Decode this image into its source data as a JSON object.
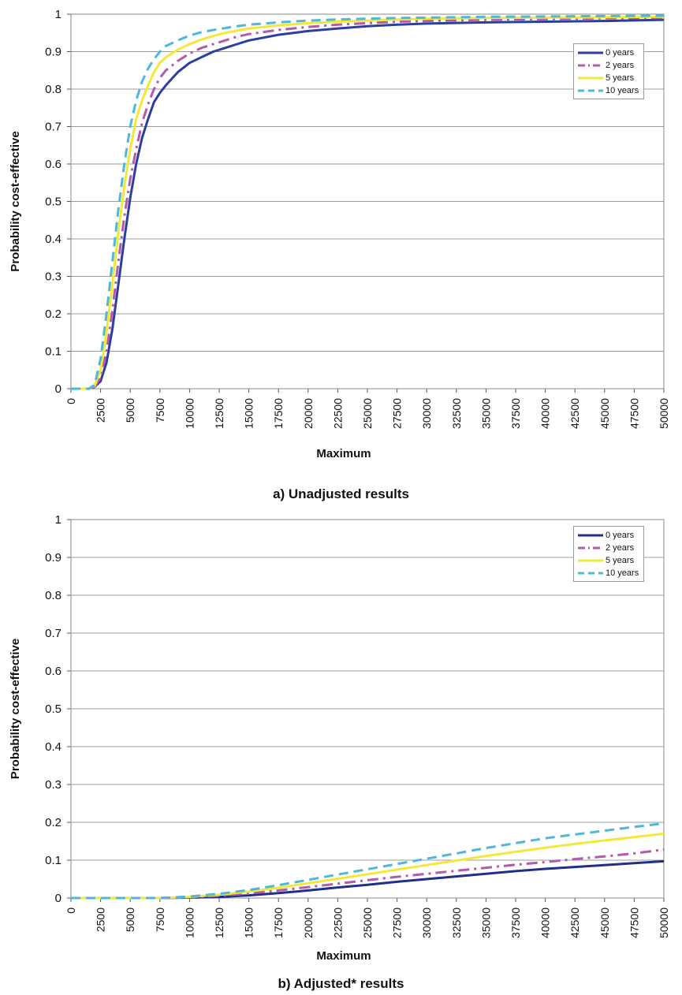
{
  "chart_data": [
    {
      "type": "line",
      "title": "a) Unadjusted results",
      "xlabel": "Maximum",
      "ylabel": "Probability cost-effective",
      "xlim": [
        0,
        50000
      ],
      "ylim": [
        0,
        1
      ],
      "x_ticks": [
        "0",
        "2500",
        "5000",
        "7500",
        "10000",
        "12500",
        "15000",
        "17500",
        "20000",
        "22500",
        "25000",
        "27500",
        "30000",
        "32500",
        "35000",
        "37500",
        "40000",
        "42500",
        "45000",
        "47500",
        "50000"
      ],
      "y_ticks": [
        "0",
        "0.1",
        "0.2",
        "0.3",
        "0.4",
        "0.5",
        "0.6",
        "0.7",
        "0.8",
        "0.9",
        "1"
      ],
      "grid": true,
      "legend": "top-right",
      "x": [
        0,
        1000,
        1500,
        2000,
        2500,
        3000,
        3500,
        4000,
        4500,
        5000,
        5500,
        6000,
        6500,
        7000,
        7500,
        8000,
        9000,
        10000,
        11000,
        12000,
        13000,
        14000,
        15000,
        17500,
        20000,
        22500,
        25000,
        27500,
        30000,
        35000,
        40000,
        45000,
        50000
      ],
      "series": [
        {
          "name": "0 years",
          "color": "#2b3f9e",
          "dash": "solid",
          "values": [
            0,
            0,
            0,
            0.005,
            0.02,
            0.07,
            0.16,
            0.28,
            0.4,
            0.51,
            0.6,
            0.67,
            0.72,
            0.765,
            0.79,
            0.81,
            0.845,
            0.87,
            0.885,
            0.9,
            0.91,
            0.92,
            0.93,
            0.945,
            0.955,
            0.962,
            0.968,
            0.972,
            0.975,
            0.978,
            0.98,
            0.982,
            0.985
          ]
        },
        {
          "name": "2 years",
          "color": "#b25aac",
          "dash": "dashdot",
          "values": [
            0,
            0,
            0,
            0.005,
            0.03,
            0.1,
            0.21,
            0.34,
            0.46,
            0.56,
            0.64,
            0.71,
            0.76,
            0.8,
            0.83,
            0.85,
            0.875,
            0.895,
            0.91,
            0.92,
            0.93,
            0.94,
            0.947,
            0.958,
            0.966,
            0.972,
            0.976,
            0.98,
            0.982,
            0.985,
            0.987,
            0.989,
            0.99
          ]
        },
        {
          "name": "5 years",
          "color": "#f2e83a",
          "dash": "solid",
          "values": [
            0,
            0,
            0,
            0.008,
            0.05,
            0.15,
            0.28,
            0.42,
            0.54,
            0.64,
            0.72,
            0.77,
            0.81,
            0.845,
            0.87,
            0.885,
            0.905,
            0.92,
            0.932,
            0.942,
            0.95,
            0.956,
            0.962,
            0.97,
            0.976,
            0.98,
            0.983,
            0.986,
            0.988,
            0.99,
            0.991,
            0.992,
            0.993
          ]
        },
        {
          "name": "10 years",
          "color": "#4fb8d8",
          "dash": "dash",
          "values": [
            0,
            0,
            0,
            0.01,
            0.08,
            0.2,
            0.34,
            0.48,
            0.6,
            0.7,
            0.77,
            0.82,
            0.855,
            0.88,
            0.9,
            0.915,
            0.93,
            0.943,
            0.952,
            0.958,
            0.963,
            0.968,
            0.972,
            0.978,
            0.983,
            0.986,
            0.988,
            0.99,
            0.991,
            0.993,
            0.994,
            0.995,
            0.996
          ]
        }
      ]
    },
    {
      "type": "line",
      "title": "b) Adjusted* results",
      "xlabel": "Maximum",
      "ylabel": "Probability cost-effective",
      "xlim": [
        0,
        50000
      ],
      "ylim": [
        0,
        1
      ],
      "x_ticks": [
        "0",
        "2500",
        "5000",
        "7500",
        "10000",
        "12500",
        "15000",
        "17500",
        "20000",
        "22500",
        "25000",
        "27500",
        "30000",
        "32500",
        "35000",
        "37500",
        "40000",
        "42500",
        "45000",
        "47500",
        "50000"
      ],
      "y_ticks": [
        "0",
        "0.1",
        "0.2",
        "0.3",
        "0.4",
        "0.5",
        "0.6",
        "0.7",
        "0.8",
        "0.9",
        "1"
      ],
      "grid": true,
      "legend": "top-right",
      "x": [
        0,
        2500,
        5000,
        7500,
        10000,
        12500,
        15000,
        17500,
        20000,
        22500,
        25000,
        27500,
        30000,
        32500,
        35000,
        37500,
        40000,
        42500,
        45000,
        47500,
        50000
      ],
      "series": [
        {
          "name": "0 years",
          "color": "#1f2f8a",
          "dash": "solid",
          "values": [
            0,
            0,
            0,
            0,
            0.001,
            0.003,
            0.007,
            0.013,
            0.02,
            0.028,
            0.035,
            0.043,
            0.05,
            0.057,
            0.064,
            0.071,
            0.077,
            0.082,
            0.087,
            0.092,
            0.097
          ]
        },
        {
          "name": "2 years",
          "color": "#b25aac",
          "dash": "dashdot",
          "values": [
            0,
            0,
            0,
            0,
            0.002,
            0.006,
            0.012,
            0.02,
            0.029,
            0.038,
            0.047,
            0.056,
            0.064,
            0.072,
            0.08,
            0.088,
            0.095,
            0.103,
            0.11,
            0.118,
            0.128
          ]
        },
        {
          "name": "5 years",
          "color": "#f2e83a",
          "dash": "solid",
          "values": [
            0,
            0,
            0,
            0,
            0.003,
            0.009,
            0.017,
            0.027,
            0.039,
            0.051,
            0.063,
            0.075,
            0.087,
            0.099,
            0.111,
            0.122,
            0.133,
            0.143,
            0.152,
            0.161,
            0.17
          ]
        },
        {
          "name": "10 years",
          "color": "#4fb8d8",
          "dash": "dash",
          "values": [
            0,
            0,
            0,
            0,
            0.004,
            0.011,
            0.021,
            0.034,
            0.048,
            0.062,
            0.076,
            0.09,
            0.104,
            0.118,
            0.132,
            0.145,
            0.158,
            0.168,
            0.178,
            0.188,
            0.197
          ]
        }
      ]
    }
  ]
}
